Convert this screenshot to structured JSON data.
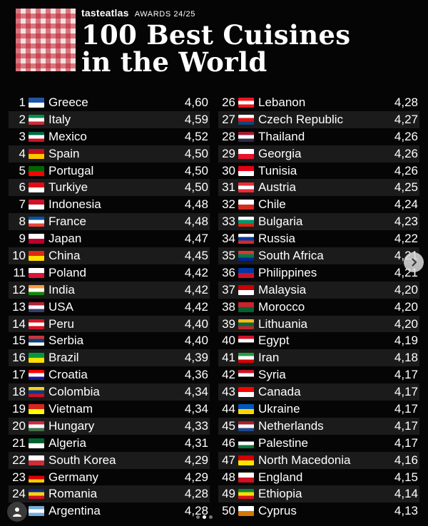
{
  "header": {
    "brand_logo": "tasteatlas",
    "brand_awards": "AWARDS 24/25",
    "title_line1": "100 Best Cuisines",
    "title_line2": "in the World"
  },
  "left_list": [
    {
      "rank": "1",
      "country": "Greece",
      "score": "4,60",
      "flag": [
        "#1f55a6",
        "#ffffff"
      ]
    },
    {
      "rank": "2",
      "country": "Italy",
      "score": "4,59",
      "flag": [
        "#009246",
        "#ffffff",
        "#ce2b37"
      ]
    },
    {
      "rank": "3",
      "country": "Mexico",
      "score": "4,52",
      "flag": [
        "#006847",
        "#ffffff",
        "#ce1126"
      ]
    },
    {
      "rank": "4",
      "country": "Spain",
      "score": "4,50",
      "flag": [
        "#c60b1e",
        "#ffc400"
      ]
    },
    {
      "rank": "5",
      "country": "Portugal",
      "score": "4,50",
      "flag": [
        "#006600",
        "#ff0000"
      ]
    },
    {
      "rank": "6",
      "country": "Turkiye",
      "score": "4,50",
      "flag": [
        "#e30a17",
        "#ffffff"
      ]
    },
    {
      "rank": "7",
      "country": "Indonesia",
      "score": "4,48",
      "flag": [
        "#ce1126",
        "#ffffff"
      ]
    },
    {
      "rank": "8",
      "country": "France",
      "score": "4,48",
      "flag": [
        "#0055a4",
        "#ffffff",
        "#ef4135"
      ]
    },
    {
      "rank": "9",
      "country": "Japan",
      "score": "4,47",
      "flag": [
        "#ffffff",
        "#bc002d"
      ]
    },
    {
      "rank": "10",
      "country": "China",
      "score": "4,45",
      "flag": [
        "#de2910",
        "#ffde00"
      ]
    },
    {
      "rank": "11",
      "country": "Poland",
      "score": "4,42",
      "flag": [
        "#ffffff",
        "#dc143c"
      ]
    },
    {
      "rank": "12",
      "country": "India",
      "score": "4,42",
      "flag": [
        "#ff9933",
        "#ffffff",
        "#138808"
      ]
    },
    {
      "rank": "13",
      "country": "USA",
      "score": "4,42",
      "flag": [
        "#b22234",
        "#ffffff",
        "#3c3b6e"
      ]
    },
    {
      "rank": "14",
      "country": "Peru",
      "score": "4,40",
      "flag": [
        "#d91023",
        "#ffffff",
        "#d91023"
      ]
    },
    {
      "rank": "15",
      "country": "Serbia",
      "score": "4,40",
      "flag": [
        "#c6363c",
        "#0c4076",
        "#ffffff"
      ]
    },
    {
      "rank": "16",
      "country": "Brazil",
      "score": "4,39",
      "flag": [
        "#009c3b",
        "#ffdf00"
      ]
    },
    {
      "rank": "17",
      "country": "Croatia",
      "score": "4,36",
      "flag": [
        "#ff0000",
        "#ffffff",
        "#171796"
      ]
    },
    {
      "rank": "18",
      "country": "Colombia",
      "score": "4,34",
      "flag": [
        "#fcd116",
        "#003893",
        "#ce1126"
      ]
    },
    {
      "rank": "19",
      "country": "Vietnam",
      "score": "4,34",
      "flag": [
        "#da251d",
        "#ffff00"
      ]
    },
    {
      "rank": "20",
      "country": "Hungary",
      "score": "4,33",
      "flag": [
        "#cd2a3e",
        "#ffffff",
        "#436f4d"
      ]
    },
    {
      "rank": "21",
      "country": "Algeria",
      "score": "4,31",
      "flag": [
        "#006233",
        "#ffffff"
      ]
    },
    {
      "rank": "22",
      "country": "South Korea",
      "score": "4,29",
      "flag": [
        "#ffffff",
        "#cd2e3a"
      ]
    },
    {
      "rank": "23",
      "country": "Germany",
      "score": "4,29",
      "flag": [
        "#000000",
        "#dd0000",
        "#ffce00"
      ]
    },
    {
      "rank": "24",
      "country": "Romania",
      "score": "4,28",
      "flag": [
        "#002b7f",
        "#fcd116",
        "#ce1126"
      ]
    },
    {
      "rank": "25",
      "country": "Argentina",
      "score": "4,28",
      "flag": [
        "#74acdf",
        "#ffffff",
        "#74acdf"
      ]
    }
  ],
  "right_list": [
    {
      "rank": "26",
      "country": "Lebanon",
      "score": "4,28",
      "flag": [
        "#ee161f",
        "#ffffff",
        "#ee161f"
      ]
    },
    {
      "rank": "27",
      "country": "Czech Republic",
      "score": "4,27",
      "flag": [
        "#ffffff",
        "#d7141a",
        "#11457e"
      ]
    },
    {
      "rank": "28",
      "country": "Thailand",
      "score": "4,26",
      "flag": [
        "#a51931",
        "#ffffff",
        "#2d2a4a"
      ]
    },
    {
      "rank": "29",
      "country": "Georgia",
      "score": "4,26",
      "flag": [
        "#ffffff",
        "#e8112d"
      ]
    },
    {
      "rank": "30",
      "country": "Tunisia",
      "score": "4,26",
      "flag": [
        "#e70013",
        "#ffffff"
      ]
    },
    {
      "rank": "31",
      "country": "Austria",
      "score": "4,25",
      "flag": [
        "#ed2939",
        "#ffffff",
        "#ed2939"
      ]
    },
    {
      "rank": "32",
      "country": "Chile",
      "score": "4,24",
      "flag": [
        "#ffffff",
        "#d52b1e"
      ]
    },
    {
      "rank": "33",
      "country": "Bulgaria",
      "score": "4,23",
      "flag": [
        "#ffffff",
        "#00966e",
        "#d62612"
      ]
    },
    {
      "rank": "34",
      "country": "Russia",
      "score": "4,22",
      "flag": [
        "#ffffff",
        "#0039a6",
        "#d52b1e"
      ]
    },
    {
      "rank": "35",
      "country": "South Africa",
      "score": "4,21",
      "flag": [
        "#de3831",
        "#007a4d",
        "#002395"
      ]
    },
    {
      "rank": "36",
      "country": "Philippines",
      "score": "4,21",
      "flag": [
        "#0038a8",
        "#ce1126"
      ]
    },
    {
      "rank": "37",
      "country": "Malaysia",
      "score": "4,20",
      "flag": [
        "#cc0001",
        "#ffffff"
      ]
    },
    {
      "rank": "38",
      "country": "Morocco",
      "score": "4,20",
      "flag": [
        "#c1272d",
        "#006233"
      ]
    },
    {
      "rank": "39",
      "country": "Lithuania",
      "score": "4,20",
      "flag": [
        "#fdb913",
        "#006a44",
        "#c1272d"
      ]
    },
    {
      "rank": "40",
      "country": "Egypt",
      "score": "4,19",
      "flag": [
        "#ce1126",
        "#ffffff",
        "#000000"
      ]
    },
    {
      "rank": "41",
      "country": "Iran",
      "score": "4,18",
      "flag": [
        "#239f40",
        "#ffffff",
        "#da0000"
      ]
    },
    {
      "rank": "42",
      "country": "Syria",
      "score": "4,17",
      "flag": [
        "#ce1126",
        "#ffffff",
        "#000000"
      ]
    },
    {
      "rank": "43",
      "country": "Canada",
      "score": "4,17",
      "flag": [
        "#ff0000",
        "#ffffff"
      ]
    },
    {
      "rank": "44",
      "country": "Ukraine",
      "score": "4,17",
      "flag": [
        "#0057b7",
        "#ffd700"
      ]
    },
    {
      "rank": "45",
      "country": "Netherlands",
      "score": "4,17",
      "flag": [
        "#ae1c28",
        "#ffffff",
        "#21468b"
      ]
    },
    {
      "rank": "46",
      "country": "Palestine",
      "score": "4,17",
      "flag": [
        "#000000",
        "#ffffff",
        "#007a3d"
      ]
    },
    {
      "rank": "47",
      "country": "North Macedonia",
      "score": "4,16",
      "flag": [
        "#d20000",
        "#ffe600"
      ]
    },
    {
      "rank": "48",
      "country": "England",
      "score": "4,15",
      "flag": [
        "#ffffff",
        "#ce1124"
      ]
    },
    {
      "rank": "49",
      "country": "Ethiopia",
      "score": "4,14",
      "flag": [
        "#078930",
        "#fcdd09",
        "#da121a"
      ]
    },
    {
      "rank": "50",
      "country": "Cyprus",
      "score": "4,13",
      "flag": [
        "#ffffff",
        "#d57800"
      ]
    }
  ],
  "icons": {
    "next": "chevron-right-icon",
    "user": "user-icon"
  },
  "carousel": {
    "count": 3,
    "active": 1
  }
}
